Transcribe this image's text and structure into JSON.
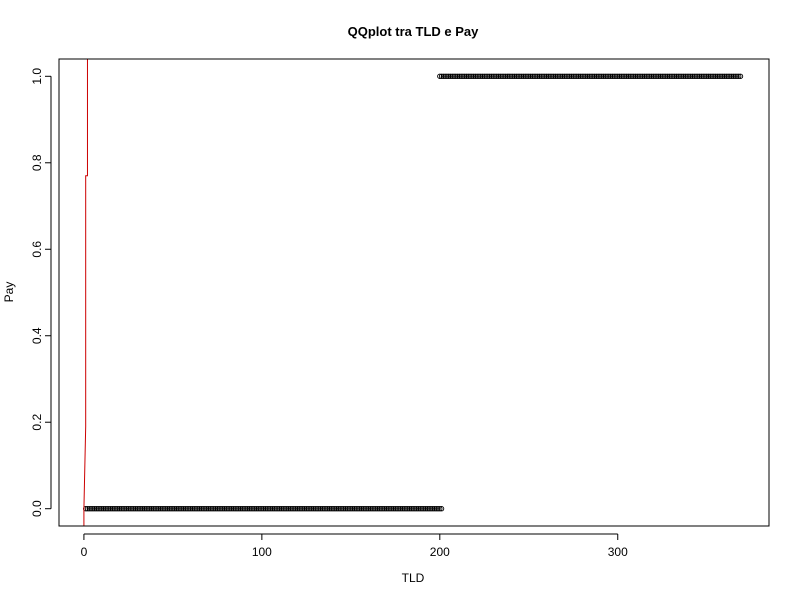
{
  "chart_data": {
    "type": "scatter",
    "title": "QQplot tra TLD e Pay",
    "xlabel": "TLD",
    "ylabel": "Pay",
    "xlim": [
      -14,
      385
    ],
    "ylim": [
      -0.04,
      1.04
    ],
    "xticks": [
      0,
      100,
      200,
      300
    ],
    "xtick_labels": [
      "0",
      "100",
      "200",
      "300"
    ],
    "yticks": [
      0.0,
      0.2,
      0.4,
      0.6,
      0.8,
      1.0
    ],
    "ytick_labels": [
      "0.0",
      "0.2",
      "0.4",
      "0.6",
      "0.8",
      "1.0"
    ],
    "grid": false,
    "legend": "none",
    "series": [
      {
        "kind": "points",
        "marker": "open-circle",
        "color": "#000000",
        "segments": [
          {
            "x_from": 1,
            "x_to": 201,
            "y": 0
          },
          {
            "x_from": 200,
            "x_to": 369,
            "y": 1
          }
        ]
      },
      {
        "kind": "line",
        "color": "#cc0000",
        "points": [
          [
            0,
            -0.04
          ],
          [
            0,
            0.0
          ],
          [
            1,
            0.19
          ],
          [
            1,
            0.77
          ],
          [
            2,
            0.77
          ],
          [
            2,
            1.04
          ]
        ]
      }
    ]
  }
}
